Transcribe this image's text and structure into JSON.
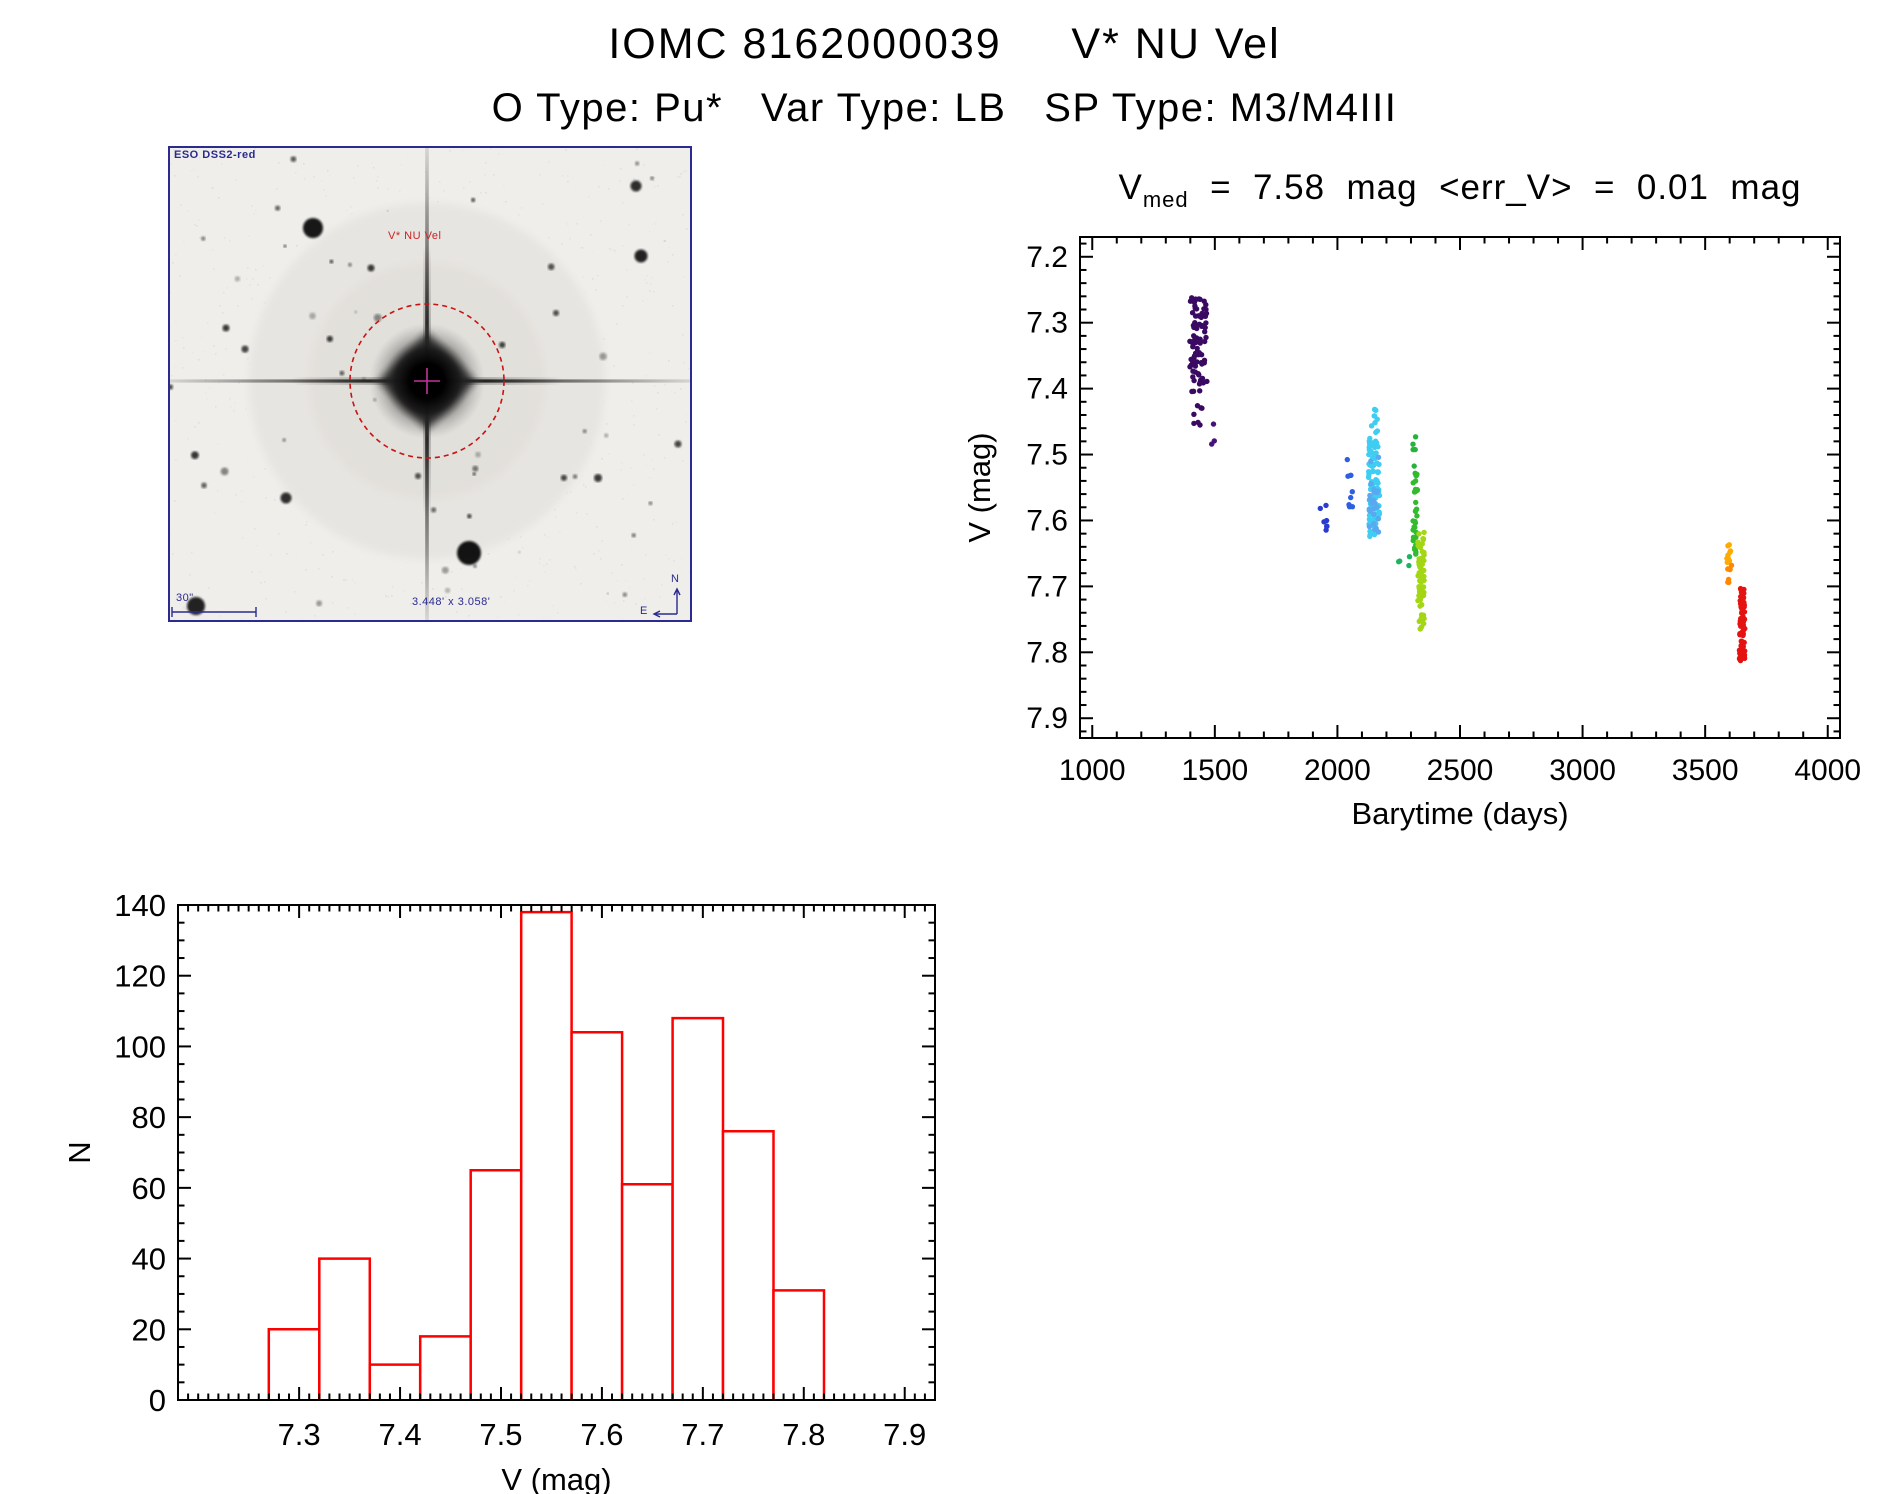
{
  "header": {
    "title": "IOMC 8162000039     V* NU Vel",
    "subtitle": "O Type: Pu*   Var Type: LB   SP Type: M3/M4III"
  },
  "finder": {
    "survey_label": "ESO DSS2-red",
    "star_label": "V* NU Vel",
    "scale_label": "30\"",
    "fov_label": "3.448' x 3.058'",
    "compass_north": "N",
    "compass_east": "E",
    "frame_color": "#2a2a8f",
    "annotation_color": "#cc1111"
  },
  "chart_data": [
    {
      "id": "lightcurve",
      "type": "scatter",
      "title_parts": {
        "prefix": "V",
        "sub": "med",
        "suffix": "  =  7.58  mag  <err_V>  =  0.01  mag"
      },
      "vmed_mag": 7.58,
      "err_v_mag": 0.01,
      "xlabel": "Barytime (days)",
      "ylabel": "V (mag)",
      "xlim": [
        950,
        4050
      ],
      "ylim": [
        7.17,
        7.93
      ],
      "y_axis_direction": "inverted-magnitudes",
      "x_ticks": [
        1000,
        1500,
        2000,
        2500,
        3000,
        3500,
        4000
      ],
      "x_tick_labels": [
        "1000",
        "1500",
        "2000",
        "2500",
        "3000",
        "3500",
        "4000"
      ],
      "x_minor_step": 100,
      "y_ticks": [
        7.2,
        7.3,
        7.4,
        7.5,
        7.6,
        7.7,
        7.8,
        7.9
      ],
      "y_minor_step": 0.02,
      "grid": false,
      "clusters": [
        {
          "label": "epoch-1-main",
          "color": "#3a0a63",
          "x": [
            1398,
            1468
          ],
          "y": [
            7.26,
            7.405
          ],
          "n": 85
        },
        {
          "label": "epoch-1-tail",
          "color": "#3a0a63",
          "x": [
            1408,
            1452
          ],
          "y": [
            7.405,
            7.46
          ],
          "n": 7
        },
        {
          "label": "epoch-1-outliers",
          "color": "#46127a",
          "x": [
            1480,
            1498
          ],
          "y": [
            7.435,
            7.525
          ],
          "n": 3
        },
        {
          "label": "epoch-2",
          "color": "#2a3bd0",
          "x": [
            1928,
            1962
          ],
          "y": [
            7.575,
            7.615
          ],
          "n": 7
        },
        {
          "label": "epoch-3",
          "color": "#2f5fe0",
          "x": [
            2040,
            2062
          ],
          "y": [
            7.5,
            7.59
          ],
          "n": 9
        },
        {
          "label": "epoch-4-main",
          "color": "#3fcdf2",
          "x": [
            2126,
            2172
          ],
          "y": [
            7.475,
            7.625
          ],
          "n": 115
        },
        {
          "label": "epoch-4-top",
          "color": "#3fcdf2",
          "x": [
            2138,
            2166
          ],
          "y": [
            7.43,
            7.475
          ],
          "n": 10
        },
        {
          "label": "epoch-4-overlay",
          "color": "#5aa8f0",
          "x": [
            2130,
            2168
          ],
          "y": [
            7.5,
            7.62
          ],
          "n": 25
        },
        {
          "label": "epoch-5-a",
          "color": "#1eb45c",
          "x": [
            2246,
            2258
          ],
          "y": [
            7.65,
            7.665
          ],
          "n": 2
        },
        {
          "label": "epoch-5-b",
          "color": "#1eb45c",
          "x": [
            2286,
            2298
          ],
          "y": [
            7.65,
            7.67
          ],
          "n": 2
        },
        {
          "label": "epoch-5-c",
          "color": "#27b33b",
          "x": [
            2306,
            2324
          ],
          "y": [
            7.47,
            7.53
          ],
          "n": 6
        },
        {
          "label": "epoch-5-d",
          "color": "#33bb2e",
          "x": [
            2308,
            2326
          ],
          "y": [
            7.53,
            7.665
          ],
          "n": 32
        },
        {
          "label": "epoch-6",
          "color": "#a3d613",
          "x": [
            2328,
            2354
          ],
          "y": [
            7.615,
            7.765
          ],
          "n": 70
        },
        {
          "label": "epoch-7-a",
          "color": "#ffaa00",
          "x": [
            3588,
            3606
          ],
          "y": [
            7.635,
            7.665
          ],
          "n": 9
        },
        {
          "label": "epoch-7-b",
          "color": "#ff8800",
          "x": [
            3592,
            3612
          ],
          "y": [
            7.66,
            7.695
          ],
          "n": 8
        },
        {
          "label": "epoch-8",
          "color": "#e51212",
          "x": [
            3640,
            3662
          ],
          "y": [
            7.7,
            7.815
          ],
          "n": 65
        }
      ]
    },
    {
      "id": "histogram",
      "type": "bar",
      "xlabel": "V (mag)",
      "ylabel": "N",
      "xlim": [
        7.18,
        7.93
      ],
      "ylim": [
        0,
        140
      ],
      "bin_start": 7.27,
      "bin_width": 0.05,
      "values": [
        20,
        40,
        10,
        18,
        65,
        138,
        104,
        61,
        108,
        76,
        31
      ],
      "x_ticks": [
        7.3,
        7.4,
        7.5,
        7.6,
        7.7,
        7.8,
        7.9
      ],
      "x_tick_labels": [
        "7.3",
        "7.4",
        "7.5",
        "7.6",
        "7.7",
        "7.8",
        "7.9"
      ],
      "x_minor_step": 0.01,
      "y_ticks": [
        0,
        20,
        40,
        60,
        80,
        100,
        120,
        140
      ],
      "y_minor_step": 5,
      "bar_color": "#ff0000",
      "grid": false
    }
  ]
}
